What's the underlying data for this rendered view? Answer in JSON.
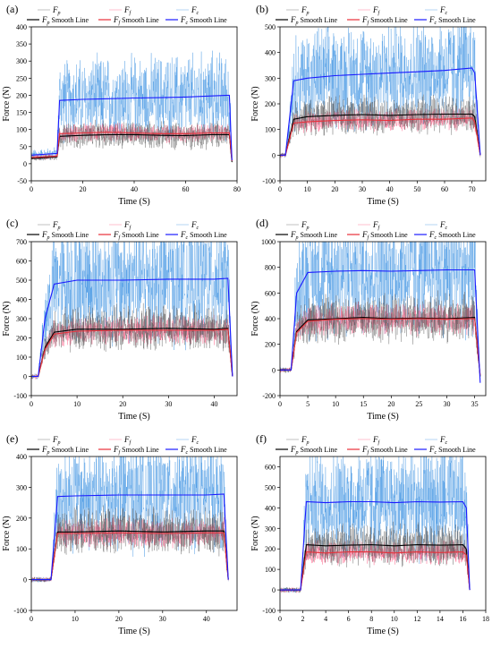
{
  "chart_data": [
    {
      "panel": "(a)",
      "type": "line",
      "xlabel": "Time (S)",
      "ylabel": "Force (N)",
      "xlim": [
        0,
        80
      ],
      "ylim": [
        -50,
        400
      ],
      "xticks": [
        0,
        20,
        40,
        60,
        80
      ],
      "yticks": [
        -50,
        0,
        50,
        100,
        150,
        200,
        250,
        300,
        350,
        400
      ],
      "legend": [
        "F_p",
        "F_f",
        "F_c",
        "F_p Smooth Line",
        "F_f Smooth Line",
        "F_c Smooth Line"
      ],
      "series": [
        {
          "name": "F_p Smooth Line",
          "x": [
            0,
            10,
            11,
            20,
            30,
            40,
            50,
            60,
            70,
            77,
            78
          ],
          "values": [
            15,
            20,
            80,
            83,
            85,
            85,
            83,
            82,
            85,
            85,
            5
          ]
        },
        {
          "name": "F_f Smooth Line",
          "x": [
            0,
            10,
            11,
            20,
            30,
            40,
            50,
            60,
            70,
            77,
            78
          ],
          "values": [
            18,
            22,
            88,
            90,
            92,
            90,
            88,
            88,
            90,
            90,
            8
          ]
        },
        {
          "name": "F_c Smooth Line",
          "x": [
            0,
            10,
            11,
            20,
            30,
            40,
            50,
            60,
            70,
            77,
            78
          ],
          "values": [
            25,
            30,
            185,
            188,
            190,
            192,
            193,
            195,
            198,
            200,
            10
          ]
        }
      ]
    },
    {
      "panel": "(b)",
      "type": "line",
      "xlabel": "Time (S)",
      "ylabel": "Force (N)",
      "xlim": [
        0,
        75
      ],
      "ylim": [
        -100,
        500
      ],
      "xticks": [
        0,
        10,
        20,
        30,
        40,
        50,
        60,
        70
      ],
      "yticks": [
        -100,
        0,
        100,
        200,
        300,
        400,
        500
      ],
      "legend": [
        "F_p",
        "F_f",
        "F_c",
        "F_p Smooth Line",
        "F_f Smooth Line",
        "F_c Smooth Line"
      ],
      "series": [
        {
          "name": "F_p Smooth Line",
          "x": [
            0,
            2,
            5,
            10,
            20,
            30,
            40,
            50,
            60,
            70,
            71,
            73
          ],
          "values": [
            0,
            0,
            140,
            150,
            155,
            158,
            155,
            158,
            160,
            160,
            150,
            0
          ]
        },
        {
          "name": "F_f Smooth Line",
          "x": [
            0,
            2,
            5,
            10,
            20,
            30,
            40,
            50,
            60,
            70,
            71,
            73
          ],
          "values": [
            0,
            0,
            125,
            130,
            135,
            138,
            135,
            140,
            140,
            145,
            130,
            0
          ]
        },
        {
          "name": "F_c Smooth Line",
          "x": [
            0,
            2,
            5,
            10,
            20,
            30,
            40,
            50,
            60,
            70,
            71,
            73
          ],
          "values": [
            0,
            0,
            290,
            300,
            310,
            315,
            320,
            325,
            330,
            340,
            320,
            0
          ]
        }
      ]
    },
    {
      "panel": "(c)",
      "type": "line",
      "xlabel": "Time (S)",
      "ylabel": "Force (N)",
      "xlim": [
        0,
        45
      ],
      "ylim": [
        -100,
        700
      ],
      "xticks": [
        0,
        10,
        20,
        30,
        40
      ],
      "yticks": [
        -100,
        0,
        100,
        200,
        300,
        400,
        500,
        600,
        700
      ],
      "legend": [
        "F_p",
        "F_f",
        "F_c",
        "F_p Smooth Line",
        "F_f Smooth Line",
        "F_c Smooth Line"
      ],
      "series": [
        {
          "name": "F_p Smooth Line",
          "x": [
            0,
            1.5,
            3,
            5,
            10,
            20,
            30,
            40,
            43,
            44
          ],
          "values": [
            0,
            0,
            150,
            230,
            245,
            245,
            250,
            245,
            250,
            0
          ]
        },
        {
          "name": "F_f Smooth Line",
          "x": [
            0,
            1.5,
            3,
            5,
            10,
            20,
            30,
            40,
            43,
            44
          ],
          "values": [
            0,
            0,
            140,
            220,
            235,
            240,
            240,
            240,
            245,
            0
          ]
        },
        {
          "name": "F_c Smooth Line",
          "x": [
            0,
            1.5,
            3,
            5,
            10,
            20,
            30,
            40,
            43,
            44
          ],
          "values": [
            0,
            0,
            300,
            480,
            500,
            500,
            505,
            505,
            510,
            0
          ]
        }
      ]
    },
    {
      "panel": "(d)",
      "type": "line",
      "xlabel": "Time (S)",
      "ylabel": "Force (N)",
      "xlim": [
        0,
        37
      ],
      "ylim": [
        -200,
        1000
      ],
      "xticks": [
        0,
        5,
        10,
        15,
        20,
        25,
        30,
        35
      ],
      "yticks": [
        -200,
        0,
        200,
        400,
        600,
        800,
        1000
      ],
      "legend": [
        "F_p",
        "F_f",
        "F_c",
        "F_p Smooth Line",
        "F_f Smooth Line",
        "F_c Smooth Line"
      ],
      "series": [
        {
          "name": "F_p Smooth Line",
          "x": [
            0,
            2,
            3,
            5,
            10,
            15,
            20,
            25,
            30,
            35,
            36
          ],
          "values": [
            0,
            0,
            300,
            390,
            400,
            410,
            400,
            405,
            400,
            410,
            -50
          ]
        },
        {
          "name": "F_f Smooth Line",
          "x": [
            0,
            2,
            3,
            5,
            10,
            15,
            20,
            25,
            30,
            35,
            36
          ],
          "values": [
            0,
            0,
            290,
            380,
            395,
            400,
            395,
            400,
            395,
            400,
            -40
          ]
        },
        {
          "name": "F_c Smooth Line",
          "x": [
            0,
            2,
            3,
            5,
            10,
            15,
            20,
            25,
            30,
            35,
            36
          ],
          "values": [
            0,
            0,
            600,
            760,
            770,
            775,
            770,
            775,
            780,
            780,
            -100
          ]
        }
      ]
    },
    {
      "panel": "(e)",
      "type": "line",
      "xlabel": "Time (S)",
      "ylabel": "Force (N)",
      "xlim": [
        0,
        47
      ],
      "ylim": [
        -100,
        400
      ],
      "xticks": [
        0,
        10,
        20,
        30,
        40
      ],
      "yticks": [
        -100,
        0,
        100,
        200,
        300,
        400
      ],
      "legend": [
        "F_p",
        "F_f",
        "F_c",
        "F_p Smooth Line",
        "F_f Smooth Line",
        "F_c Smooth Line"
      ],
      "series": [
        {
          "name": "F_p Smooth Line",
          "x": [
            0,
            4.5,
            6,
            10,
            20,
            30,
            40,
            44,
            45
          ],
          "values": [
            0,
            0,
            155,
            155,
            158,
            155,
            158,
            158,
            0
          ]
        },
        {
          "name": "F_f Smooth Line",
          "x": [
            0,
            4.5,
            6,
            10,
            20,
            30,
            40,
            44,
            45
          ],
          "values": [
            0,
            0,
            150,
            150,
            152,
            150,
            152,
            152,
            0
          ]
        },
        {
          "name": "F_c Smooth Line",
          "x": [
            0,
            4.5,
            6,
            10,
            20,
            30,
            40,
            44,
            45
          ],
          "values": [
            0,
            0,
            270,
            272,
            275,
            275,
            275,
            278,
            0
          ]
        }
      ]
    },
    {
      "panel": "(f)",
      "type": "line",
      "xlabel": "Time (S)",
      "ylabel": "Force (N)",
      "xlim": [
        0,
        18
      ],
      "ylim": [
        -100,
        650
      ],
      "xticks": [
        0,
        2,
        4,
        6,
        8,
        10,
        12,
        14,
        16,
        18
      ],
      "yticks": [
        -100,
        0,
        100,
        200,
        300,
        400,
        500,
        600
      ],
      "legend": [
        "F_p",
        "F_f",
        "F_c",
        "F_p Smooth Line",
        "F_f Smooth Line",
        "F_c Smooth Line"
      ],
      "series": [
        {
          "name": "F_p Smooth Line",
          "x": [
            0,
            1.8,
            2.3,
            4,
            6,
            8,
            10,
            12,
            14,
            16,
            16.3,
            16.6
          ],
          "values": [
            0,
            0,
            220,
            215,
            218,
            220,
            215,
            220,
            218,
            220,
            200,
            0
          ]
        },
        {
          "name": "F_f Smooth Line",
          "x": [
            0,
            1.8,
            2.3,
            4,
            6,
            8,
            10,
            12,
            14,
            16,
            16.3,
            16.6
          ],
          "values": [
            0,
            0,
            185,
            180,
            185,
            185,
            180,
            185,
            182,
            185,
            170,
            0
          ]
        },
        {
          "name": "F_c Smooth Line",
          "x": [
            0,
            1.8,
            2.3,
            4,
            6,
            8,
            10,
            12,
            14,
            16,
            16.3,
            16.6
          ],
          "values": [
            0,
            0,
            430,
            425,
            430,
            430,
            425,
            430,
            428,
            430,
            400,
            0
          ]
        }
      ]
    }
  ],
  "style": {
    "raw_colors": {
      "F_p": "#555555",
      "F_f": "#ff4f7a",
      "F_c": "#2f8ae0"
    },
    "smooth_colors": {
      "F_p": "#000000",
      "F_f": "#e8303a",
      "F_c": "#1a1aff"
    }
  }
}
